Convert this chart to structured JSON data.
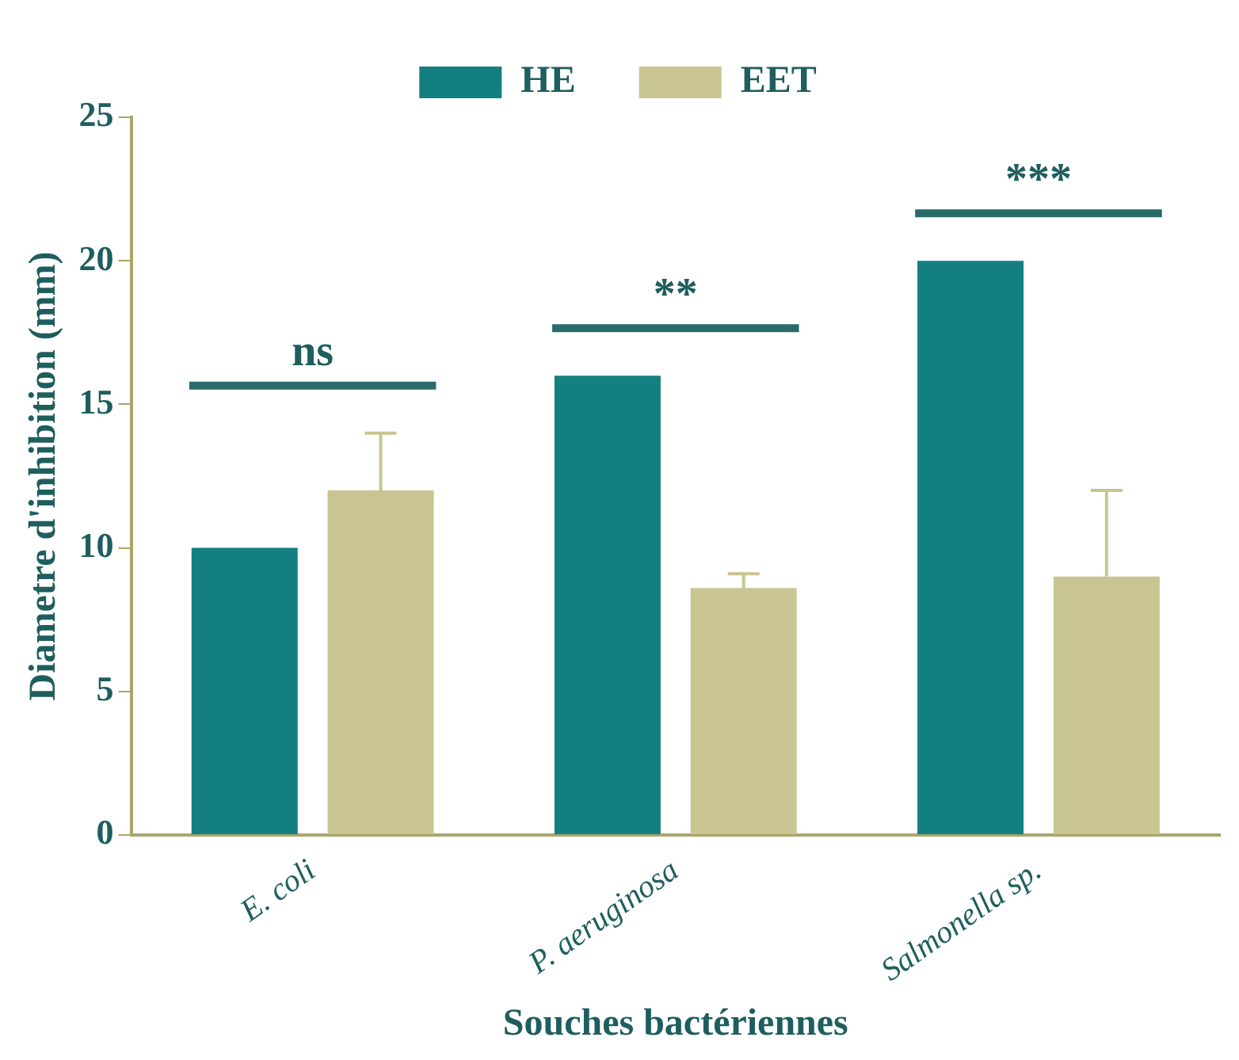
{
  "chart_data": {
    "type": "bar",
    "xlabel": "Souches bactériennes",
    "ylabel": "Diametre d'inhibition (mm)",
    "categories": [
      "E. coli",
      "P. aeruginosa",
      "Salmonella sp."
    ],
    "series": [
      {
        "name": "HE",
        "color": "#137f80",
        "values": [
          10,
          16,
          20
        ]
      },
      {
        "name": "EET",
        "color": "#c9c592",
        "values": [
          12,
          8.6,
          9
        ],
        "errors": [
          [
            12,
            14
          ],
          [
            8.6,
            9.1
          ],
          [
            9,
            12
          ]
        ]
      }
    ],
    "ylim": [
      0,
      25
    ],
    "yticks": [
      0,
      5,
      10,
      15,
      20,
      25
    ],
    "grid": false,
    "legend": "top",
    "annotations": [
      "ns",
      "**",
      "***"
    ]
  }
}
